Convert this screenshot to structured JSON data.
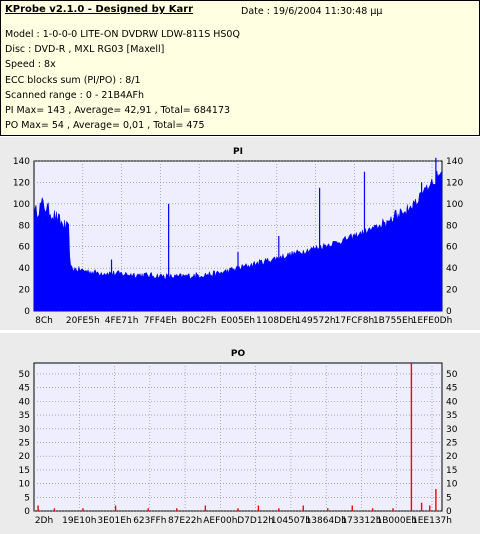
{
  "info": {
    "title": "KProbe v2.1.0 - Designed by Karr",
    "date": "Date : 19/6/2004 11:30:48 μμ",
    "model": "Model : 1-0-0-0 LITE-ON DVDRW LDW-811S   HS0Q",
    "disc": "Disc : DVD-R , MXL RG03 [Maxell]",
    "speed": "Speed : 8x",
    "ecc": "ECC blocks sum (PI/PO) : 8/1",
    "range": "Scanned range : 0 - 21B4AFh",
    "pi_stats": "PI Max= 143 , Average= 42,91 , Total= 684173",
    "po_stats": "PO Max= 54 , Average= 0,01 , Total= 475"
  },
  "colors": {
    "pi": "#0000ff",
    "po": "#ff0000",
    "plot_bg": "#eeeeff",
    "grid": "#808080"
  },
  "chart_data": [
    {
      "type": "area",
      "title": "PI",
      "ylim": [
        0,
        140
      ],
      "yticks": [
        0,
        20,
        40,
        60,
        80,
        100,
        120,
        140
      ],
      "xtick_labels": [
        "8Ch",
        "20FE5h",
        "4FE71h",
        "7FF4Eh",
        "B0C2Fh",
        "E005Eh",
        "1108DEh",
        "149572h",
        "17FCF8h",
        "1B755Eh",
        "1EFE0Dh"
      ],
      "profile": [
        [
          0,
          90
        ],
        [
          0.02,
          100
        ],
        [
          0.06,
          85
        ],
        [
          0.085,
          75
        ],
        [
          0.09,
          40
        ],
        [
          0.15,
          36
        ],
        [
          0.35,
          32
        ],
        [
          0.45,
          35
        ],
        [
          0.55,
          45
        ],
        [
          0.65,
          55
        ],
        [
          0.75,
          65
        ],
        [
          0.85,
          80
        ],
        [
          0.93,
          100
        ],
        [
          0.97,
          115
        ],
        [
          1,
          135
        ]
      ],
      "spikes": [
        [
          0.19,
          48
        ],
        [
          0.33,
          100
        ],
        [
          0.5,
          55
        ],
        [
          0.6,
          70
        ],
        [
          0.7,
          115
        ],
        [
          0.81,
          130
        ],
        [
          0.95,
          120
        ],
        [
          0.985,
          143
        ]
      ],
      "grid": true
    },
    {
      "type": "bar",
      "title": "PO",
      "ylim": [
        0,
        54
      ],
      "yticks": [
        0,
        5,
        10,
        15,
        20,
        25,
        30,
        35,
        40,
        45,
        50
      ],
      "xtick_labels": [
        "2Dh",
        "19E10h",
        "3E01Eh",
        "623FFh",
        "87E22h",
        "AEF00h",
        "D7D12h",
        "104507h",
        "13864Dh",
        "173312h",
        "1B000Eh",
        "1EE137h"
      ],
      "bars": [
        [
          0.01,
          2
        ],
        [
          0.05,
          1
        ],
        [
          0.12,
          1
        ],
        [
          0.2,
          2
        ],
        [
          0.28,
          1
        ],
        [
          0.35,
          1
        ],
        [
          0.42,
          2
        ],
        [
          0.5,
          1
        ],
        [
          0.55,
          2
        ],
        [
          0.6,
          1
        ],
        [
          0.66,
          2
        ],
        [
          0.72,
          1
        ],
        [
          0.78,
          2
        ],
        [
          0.83,
          1
        ],
        [
          0.88,
          1
        ],
        [
          0.925,
          54
        ],
        [
          0.95,
          3
        ],
        [
          0.97,
          2
        ],
        [
          0.985,
          8
        ]
      ],
      "grid": true
    }
  ]
}
